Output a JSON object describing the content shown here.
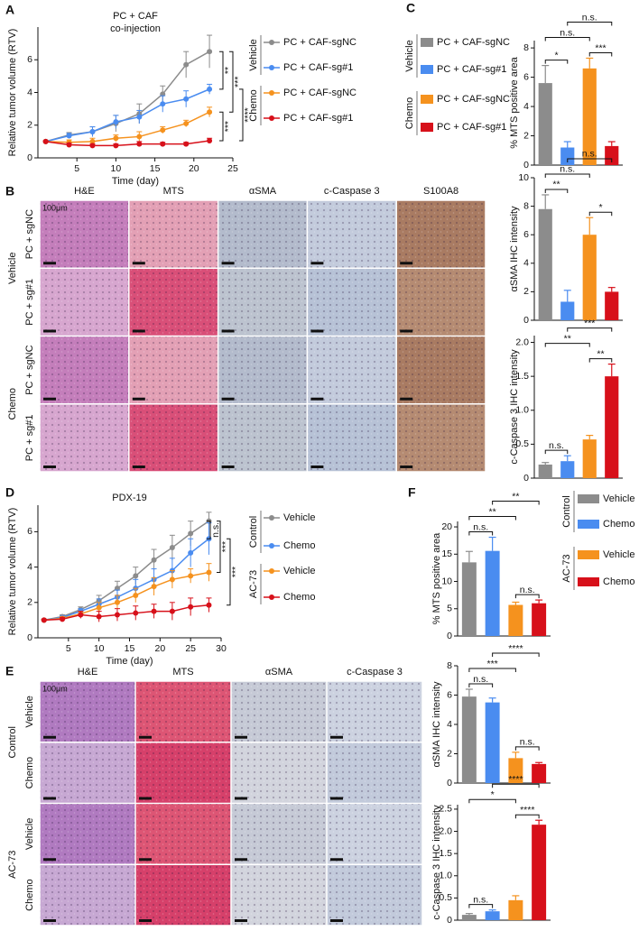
{
  "panel_labels": [
    "A",
    "B",
    "C",
    "D",
    "E",
    "F"
  ],
  "chart_data": [
    {
      "type": "line",
      "title": "PC + CAF",
      "subtitle": "co-injection",
      "xlabel": "Time (day)",
      "ylabel": "Relative tumor volume (RTV)",
      "x": [
        1,
        4,
        7,
        10,
        13,
        16,
        19,
        22
      ],
      "xlim": [
        0,
        25
      ],
      "xticks": [
        5,
        10,
        15,
        20,
        25
      ],
      "ylim": [
        0,
        8
      ],
      "yticks": [
        0,
        2,
        4,
        6
      ],
      "groups": [
        {
          "name": "Vehicle",
          "series": [
            {
              "name": "PC + CAF-sgNC",
              "color": "#8c8c8c",
              "values": [
                1,
                1.4,
                1.6,
                2.1,
                2.7,
                3.9,
                5.7,
                6.5
              ],
              "errors": [
                0.05,
                0.15,
                0.3,
                0.5,
                0.6,
                0.5,
                0.8,
                1.0
              ]
            },
            {
              "name": "PC + CAF-sg#1",
              "color": "#4a8cf0",
              "values": [
                1,
                1.35,
                1.6,
                2.2,
                2.5,
                3.3,
                3.6,
                4.2
              ],
              "errors": [
                0.05,
                0.15,
                0.3,
                0.4,
                0.4,
                0.5,
                0.5,
                0.3
              ]
            }
          ]
        },
        {
          "name": "Chemo",
          "series": [
            {
              "name": "PC + CAF-sgNC",
              "color": "#f5921e",
              "values": [
                1,
                0.95,
                1.0,
                1.2,
                1.3,
                1.7,
                2.1,
                2.8
              ],
              "errors": [
                0.05,
                0.15,
                0.2,
                0.2,
                0.3,
                0.2,
                0.2,
                0.3
              ]
            },
            {
              "name": "PC + CAF-sg#1",
              "color": "#d7101a",
              "values": [
                1,
                0.8,
                0.75,
                0.75,
                0.85,
                0.85,
                0.85,
                1.05
              ],
              "errors": [
                0.05,
                0.1,
                0.1,
                0.1,
                0.15,
                0.1,
                0.1,
                0.15
              ]
            }
          ]
        }
      ],
      "annotations": [
        {
          "text": "**",
          "from": 0,
          "to": 1
        },
        {
          "text": "***",
          "from": 0,
          "to": 2
        },
        {
          "text": "***",
          "from": 2,
          "to": 3
        },
        {
          "text": "****",
          "from": 1,
          "to": 3
        }
      ]
    },
    {
      "type": "bar",
      "ylabel": "% MTS positive area",
      "ylim": [
        0,
        8.5
      ],
      "yticks": [
        0,
        2,
        4,
        6,
        8
      ],
      "colors": [
        "#8c8c8c",
        "#4a8cf0",
        "#f5921e",
        "#d7101a"
      ],
      "values": [
        5.6,
        1.2,
        6.6,
        1.3
      ],
      "errors": [
        1.2,
        0.4,
        0.7,
        0.3
      ],
      "legend": [
        {
          "group": "Vehicle",
          "items": [
            "PC + CAF-sgNC",
            "PC + CAF-sg#1"
          ]
        },
        {
          "group": "Chemo",
          "items": [
            "PC + CAF-sgNC",
            "PC + CAF-sg#1"
          ]
        }
      ],
      "annotations": [
        {
          "text": "*",
          "from": 0,
          "to": 1
        },
        {
          "text": "***",
          "from": 2,
          "to": 3
        },
        {
          "text": "n.s.",
          "from": 0,
          "to": 2
        },
        {
          "text": "n.s.",
          "from": 1,
          "to": 3
        }
      ]
    },
    {
      "type": "bar",
      "ylabel": "αSMA IHC intensity",
      "ylim": [
        0,
        10
      ],
      "yticks": [
        0,
        2,
        4,
        6,
        8,
        10
      ],
      "colors": [
        "#8c8c8c",
        "#4a8cf0",
        "#f5921e",
        "#d7101a"
      ],
      "values": [
        7.8,
        1.3,
        6.0,
        2.0
      ],
      "errors": [
        1.0,
        0.8,
        1.2,
        0.3
      ],
      "annotations": [
        {
          "text": "**",
          "from": 0,
          "to": 1
        },
        {
          "text": "*",
          "from": 2,
          "to": 3
        },
        {
          "text": "n.s.",
          "from": 0,
          "to": 2
        },
        {
          "text": "n.s.",
          "from": 1,
          "to": 3
        }
      ]
    },
    {
      "type": "bar",
      "ylabel": "c-Caspase 3 IHC intensity",
      "ylim": [
        0,
        2.1
      ],
      "yticks": [
        0,
        0.5,
        {
          "value": 1,
          "label": "1.0"
        },
        1.5,
        {
          "value": 2,
          "label": "2.0"
        }
      ],
      "colors": [
        "#8c8c8c",
        "#4a8cf0",
        "#f5921e",
        "#d7101a"
      ],
      "values": [
        0.2,
        0.25,
        0.57,
        1.5
      ],
      "errors": [
        0.03,
        0.08,
        0.06,
        0.18
      ],
      "annotations": [
        {
          "text": "n.s.",
          "from": 0,
          "to": 1
        },
        {
          "text": "**",
          "from": 2,
          "to": 3
        },
        {
          "text": "**",
          "from": 0,
          "to": 2
        },
        {
          "text": "***",
          "from": 1,
          "to": 3
        }
      ]
    },
    {
      "type": "line",
      "title": "PDX-19",
      "xlabel": "Time (day)",
      "ylabel": "Relative tumor volume (RTV)",
      "x": [
        1,
        4,
        7,
        10,
        13,
        16,
        19,
        22,
        25,
        28
      ],
      "xlim": [
        0,
        30
      ],
      "xticks": [
        5,
        10,
        15,
        20,
        25,
        30
      ],
      "ylim": [
        0,
        7.5
      ],
      "yticks": [
        0,
        2,
        4,
        6
      ],
      "groups": [
        {
          "name": "Control",
          "series": [
            {
              "name": "Vehicle",
              "color": "#8c8c8c",
              "values": [
                1,
                1.2,
                1.6,
                2.1,
                2.8,
                3.5,
                4.4,
                5.1,
                5.9,
                6.6
              ],
              "errors": [
                0.05,
                0.1,
                0.15,
                0.3,
                0.4,
                0.5,
                0.6,
                0.7,
                0.7,
                0.5
              ]
            },
            {
              "name": "Chemo",
              "color": "#4a8cf0",
              "values": [
                1,
                1.15,
                1.5,
                1.9,
                2.3,
                2.8,
                3.3,
                3.8,
                4.8,
                5.6
              ],
              "errors": [
                0.05,
                0.1,
                0.15,
                0.3,
                0.4,
                0.5,
                0.6,
                0.7,
                0.8,
                0.9
              ]
            }
          ]
        },
        {
          "name": "AC-73",
          "series": [
            {
              "name": "Vehicle",
              "color": "#f5921e",
              "values": [
                1,
                1.1,
                1.35,
                1.7,
                2.0,
                2.4,
                2.9,
                3.3,
                3.5,
                3.7
              ],
              "errors": [
                0.05,
                0.1,
                0.15,
                0.3,
                0.4,
                0.4,
                0.5,
                0.5,
                0.4,
                0.5
              ]
            },
            {
              "name": "Chemo",
              "color": "#d7101a",
              "values": [
                1,
                1.05,
                1.3,
                1.2,
                1.3,
                1.4,
                1.5,
                1.5,
                1.75,
                1.85
              ],
              "errors": [
                0.05,
                0.1,
                0.2,
                0.3,
                0.35,
                0.4,
                0.4,
                0.5,
                0.5,
                0.4
              ]
            }
          ]
        }
      ],
      "annotations": [
        {
          "text": "n.s.",
          "from": 0,
          "to": 1
        },
        {
          "text": "***",
          "from": 0,
          "to": 2
        },
        {
          "text": "***",
          "from": 1,
          "to": 3
        }
      ]
    },
    {
      "type": "bar",
      "ylabel": "% MTS positive area",
      "ylim": [
        0,
        21
      ],
      "yticks": [
        0,
        5,
        10,
        15,
        20
      ],
      "colors": [
        "#8c8c8c",
        "#4a8cf0",
        "#f5921e",
        "#d7101a"
      ],
      "values": [
        13.5,
        15.6,
        5.7,
        6.0
      ],
      "errors": [
        2.0,
        2.5,
        0.5,
        0.6
      ],
      "legend": [
        {
          "group": "Control",
          "items": [
            "Vehicle",
            "Chemo"
          ]
        },
        {
          "group": "AC-73",
          "items": [
            "Vehicle",
            "Chemo"
          ]
        }
      ],
      "annotations": [
        {
          "text": "n.s.",
          "from": 0,
          "to": 1
        },
        {
          "text": "n.s.",
          "from": 2,
          "to": 3
        },
        {
          "text": "**",
          "from": 0,
          "to": 2
        },
        {
          "text": "**",
          "from": 1,
          "to": 3
        }
      ]
    },
    {
      "type": "bar",
      "ylabel": "αSMA IHC intensity",
      "ylim": [
        0,
        8
      ],
      "yticks": [
        0,
        2,
        4,
        6,
        8
      ],
      "colors": [
        "#8c8c8c",
        "#4a8cf0",
        "#f5921e",
        "#d7101a"
      ],
      "values": [
        5.9,
        5.5,
        1.7,
        1.3
      ],
      "errors": [
        0.5,
        0.3,
        0.4,
        0.1
      ],
      "annotations": [
        {
          "text": "n.s.",
          "from": 0,
          "to": 1
        },
        {
          "text": "n.s.",
          "from": 2,
          "to": 3
        },
        {
          "text": "***",
          "from": 0,
          "to": 2
        },
        {
          "text": "****",
          "from": 1,
          "to": 3
        }
      ]
    },
    {
      "type": "bar",
      "ylabel": "c-Caspase 3 IHC intensity",
      "ylim": [
        0,
        2.6
      ],
      "yticks": [
        0,
        0.5,
        {
          "value": 1,
          "label": "1.0"
        },
        1.5,
        {
          "value": 2,
          "label": "2.0"
        },
        2.5
      ],
      "colors": [
        "#8c8c8c",
        "#4a8cf0",
        "#f5921e",
        "#d7101a"
      ],
      "values": [
        0.12,
        0.2,
        0.45,
        2.15
      ],
      "errors": [
        0.03,
        0.03,
        0.1,
        0.1
      ],
      "annotations": [
        {
          "text": "n.s.",
          "from": 0,
          "to": 1
        },
        {
          "text": "****",
          "from": 2,
          "to": 3
        },
        {
          "text": "*",
          "from": 0,
          "to": 2
        },
        {
          "text": "****",
          "from": 1,
          "to": 3
        }
      ]
    }
  ],
  "histology": [
    {
      "columns": [
        "H&E",
        "MTS",
        "αSMA",
        "c-Caspase 3",
        "S100A8"
      ],
      "scale_bar": "100μm",
      "groups": [
        {
          "name": "Vehicle",
          "rows": [
            "PC + sgNC",
            "PC + sg#1"
          ]
        },
        {
          "name": "Chemo",
          "rows": [
            "PC + sgNC",
            "PC + sg#1"
          ]
        }
      ]
    },
    {
      "columns": [
        "H&E",
        "MTS",
        "αSMA",
        "c-Caspase 3"
      ],
      "scale_bar": "100μm",
      "groups": [
        {
          "name": "Control",
          "rows": [
            "Vehicle",
            "Chemo"
          ]
        },
        {
          "name": "AC-73",
          "rows": [
            "Vehicle",
            "Chemo"
          ]
        }
      ]
    }
  ]
}
